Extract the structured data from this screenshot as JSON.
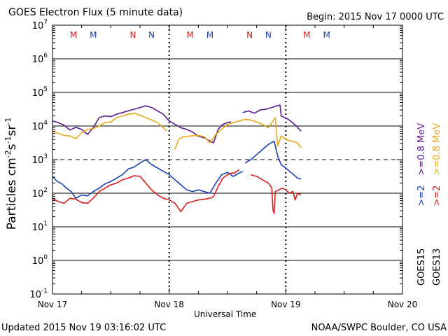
{
  "header": {
    "title": "GOES Electron Flux (5 minute data)",
    "begin": "Begin: 2015 Nov 17 0000 UTC"
  },
  "footer": {
    "updated": "Updated 2015 Nov 19 03:16:02 UTC",
    "credit": "NOAA/SWPC Boulder, CO USA"
  },
  "colors": {
    "goes15_low": "#1a3fb4",
    "goes13_low": "#d81c1c",
    "goes15_high": "#5a1a90",
    "goes13_high": "#e8a81a"
  },
  "chart_data": {
    "type": "line",
    "title": "GOES Electron Flux (5 minute data)",
    "xlabel": "Universal Time",
    "ylabel": "Particles cm-2s-1sr-1",
    "ylabel_parts": [
      "Particles cm",
      "-2",
      "s",
      "-1",
      "sr",
      "-1"
    ],
    "yscale": "log",
    "ylim_exponent": [
      -1,
      7
    ],
    "y_ticks": [
      {
        "exp": 7,
        "base": "10",
        "sup": "7"
      },
      {
        "exp": 6,
        "base": "10",
        "sup": "6"
      },
      {
        "exp": 5,
        "base": "10",
        "sup": "5"
      },
      {
        "exp": 4,
        "base": "10",
        "sup": "4"
      },
      {
        "exp": 3,
        "base": "10",
        "sup": "3"
      },
      {
        "exp": 2,
        "base": "10",
        "sup": "2"
      },
      {
        "exp": 1,
        "base": "10",
        "sup": "1"
      },
      {
        "exp": 0,
        "base": "10",
        "sup": "0"
      },
      {
        "exp": -1,
        "base": "10",
        "sup": "-1"
      }
    ],
    "xlim_days": [
      0,
      3
    ],
    "x_ticks": [
      {
        "day": 0,
        "label": "Nov 17"
      },
      {
        "day": 1,
        "label": "Nov 18"
      },
      {
        "day": 2,
        "label": "Nov 19"
      },
      {
        "day": 3,
        "label": "Nov 20"
      }
    ],
    "threshold_exp": 3,
    "midnight_markers_days": [
      1,
      2
    ],
    "local_time_markers": [
      {
        "day": 0.18,
        "label": "M",
        "sat": "goes13"
      },
      {
        "day": 0.35,
        "label": "M",
        "sat": "goes15"
      },
      {
        "day": 0.69,
        "label": "N",
        "sat": "goes13"
      },
      {
        "day": 0.85,
        "label": "N",
        "sat": "goes15"
      },
      {
        "day": 1.18,
        "label": "M",
        "sat": "goes13"
      },
      {
        "day": 1.35,
        "label": "M",
        "sat": "goes15"
      },
      {
        "day": 1.69,
        "label": "N",
        "sat": "goes13"
      },
      {
        "day": 1.85,
        "label": "N",
        "sat": "goes15"
      },
      {
        "day": 2.18,
        "label": "M",
        "sat": "goes13"
      },
      {
        "day": 2.35,
        "label": "M",
        "sat": "goes15"
      }
    ],
    "legend": {
      "position": "right",
      "columns": [
        {
          "sat": "GOES15",
          "channels": [
            {
              "label": ">=2",
              "color": "#1a3fb4"
            },
            {
              "label": ">=0.8 MeV",
              "color": "#5a1a90"
            }
          ]
        },
        {
          "sat": "GOES13",
          "channels": [
            {
              "label": ">=2",
              "color": "#d81c1c"
            },
            {
              "label": ">=0.8 MeV",
              "color": "#e8a81a"
            }
          ]
        }
      ]
    },
    "series": [
      {
        "name": "GOES15 >=0.8 MeV",
        "color": "#5a1a90",
        "segments": [
          [
            [
              0.0,
              4.15
            ],
            [
              0.05,
              4.1
            ],
            [
              0.1,
              4.02
            ],
            [
              0.15,
              3.88
            ],
            [
              0.2,
              3.96
            ],
            [
              0.25,
              3.9
            ],
            [
              0.3,
              3.75
            ],
            [
              0.35,
              3.95
            ],
            [
              0.4,
              4.25
            ],
            [
              0.45,
              4.3
            ],
            [
              0.5,
              4.28
            ],
            [
              0.55,
              4.35
            ],
            [
              0.6,
              4.4
            ],
            [
              0.65,
              4.45
            ],
            [
              0.7,
              4.5
            ],
            [
              0.75,
              4.55
            ],
            [
              0.8,
              4.6
            ],
            [
              0.85,
              4.55
            ],
            [
              0.9,
              4.45
            ],
            [
              0.95,
              4.35
            ],
            [
              1.0,
              4.15
            ],
            [
              1.05,
              4.05
            ],
            [
              1.1,
              3.95
            ],
            [
              1.15,
              3.9
            ],
            [
              1.2,
              3.82
            ],
            [
              1.25,
              3.7
            ],
            [
              1.3,
              3.65
            ],
            [
              1.35,
              3.55
            ],
            [
              1.38,
              3.5
            ],
            [
              1.42,
              3.9
            ],
            [
              1.46,
              4.05
            ],
            [
              1.5,
              4.1
            ],
            [
              1.53,
              4.12
            ]
          ],
          [
            [
              1.63,
              4.4
            ],
            [
              1.68,
              4.45
            ],
            [
              1.73,
              4.38
            ],
            [
              1.78,
              4.48
            ],
            [
              1.83,
              4.5
            ],
            [
              1.88,
              4.55
            ],
            [
              1.92,
              4.6
            ],
            [
              1.95,
              4.62
            ],
            [
              1.96,
              4.3
            ],
            [
              1.99,
              4.25
            ],
            [
              2.02,
              4.2
            ],
            [
              2.05,
              4.12
            ],
            [
              2.09,
              4.0
            ],
            [
              2.13,
              3.85
            ]
          ]
        ]
      },
      {
        "name": "GOES13 >=0.8 MeV",
        "color": "#e8a81a",
        "segments": [
          [
            [
              0.0,
              3.85
            ],
            [
              0.05,
              3.78
            ],
            [
              0.1,
              3.72
            ],
            [
              0.15,
              3.7
            ],
            [
              0.2,
              3.62
            ],
            [
              0.25,
              3.8
            ],
            [
              0.3,
              3.9
            ],
            [
              0.35,
              3.92
            ],
            [
              0.4,
              4.0
            ],
            [
              0.45,
              4.1
            ],
            [
              0.5,
              4.12
            ],
            [
              0.55,
              4.25
            ],
            [
              0.6,
              4.3
            ],
            [
              0.65,
              4.35
            ],
            [
              0.7,
              4.38
            ],
            [
              0.75,
              4.32
            ],
            [
              0.8,
              4.25
            ],
            [
              0.85,
              4.18
            ],
            [
              0.9,
              4.1
            ],
            [
              0.95,
              3.95
            ],
            [
              0.98,
              3.85
            ]
          ],
          [
            [
              1.05,
              3.3
            ],
            [
              1.08,
              3.6
            ],
            [
              1.12,
              3.68
            ],
            [
              1.18,
              3.7
            ],
            [
              1.25,
              3.72
            ],
            [
              1.3,
              3.68
            ],
            [
              1.35,
              3.5
            ],
            [
              1.4,
              3.75
            ],
            [
              1.45,
              3.9
            ],
            [
              1.5,
              4.05
            ],
            [
              1.55,
              4.1
            ],
            [
              1.6,
              4.15
            ],
            [
              1.65,
              4.2
            ],
            [
              1.7,
              4.18
            ],
            [
              1.75,
              4.12
            ],
            [
              1.8,
              4.05
            ],
            [
              1.85,
              3.95
            ],
            [
              1.88,
              4.1
            ],
            [
              1.91,
              4.25
            ],
            [
              1.93,
              3.4
            ],
            [
              1.96,
              3.7
            ],
            [
              2.0,
              3.6
            ],
            [
              2.05,
              3.55
            ],
            [
              2.1,
              3.5
            ],
            [
              2.13,
              3.35
            ]
          ]
        ]
      },
      {
        "name": "GOES15 >=2 MeV",
        "color": "#1a3fb4",
        "segments": [
          [
            [
              0.0,
              2.5
            ],
            [
              0.04,
              2.35
            ],
            [
              0.08,
              2.28
            ],
            [
              0.12,
              2.15
            ],
            [
              0.16,
              2.05
            ],
            [
              0.2,
              1.85
            ],
            [
              0.25,
              1.95
            ],
            [
              0.3,
              1.92
            ],
            [
              0.35,
              2.05
            ],
            [
              0.4,
              2.15
            ],
            [
              0.45,
              2.28
            ],
            [
              0.5,
              2.35
            ],
            [
              0.55,
              2.45
            ],
            [
              0.6,
              2.55
            ],
            [
              0.65,
              2.72
            ],
            [
              0.7,
              2.78
            ],
            [
              0.75,
              2.9
            ],
            [
              0.8,
              3.0
            ],
            [
              0.85,
              2.85
            ],
            [
              0.9,
              2.75
            ],
            [
              0.95,
              2.65
            ],
            [
              1.0,
              2.55
            ],
            [
              1.05,
              2.4
            ],
            [
              1.1,
              2.25
            ],
            [
              1.15,
              2.1
            ],
            [
              1.2,
              2.05
            ],
            [
              1.25,
              2.1
            ],
            [
              1.3,
              2.05
            ],
            [
              1.35,
              2.0
            ],
            [
              1.4,
              2.3
            ],
            [
              1.45,
              2.55
            ],
            [
              1.5,
              2.62
            ],
            [
              1.55,
              2.5
            ],
            [
              1.6,
              2.6
            ],
            [
              1.63,
              2.65
            ]
          ],
          [
            [
              1.65,
              2.9
            ],
            [
              1.7,
              3.0
            ],
            [
              1.75,
              3.15
            ],
            [
              1.8,
              3.3
            ],
            [
              1.85,
              3.45
            ],
            [
              1.9,
              3.55
            ],
            [
              1.93,
              3.1
            ],
            [
              1.96,
              2.85
            ],
            [
              2.0,
              2.75
            ],
            [
              2.05,
              2.6
            ],
            [
              2.1,
              2.45
            ],
            [
              2.13,
              2.42
            ]
          ]
        ]
      },
      {
        "name": "GOES13 >=2 MeV",
        "color": "#d81c1c",
        "segments": [
          [
            [
              0.0,
              1.85
            ],
            [
              0.05,
              1.75
            ],
            [
              0.1,
              1.7
            ],
            [
              0.15,
              1.85
            ],
            [
              0.2,
              1.82
            ],
            [
              0.25,
              1.72
            ],
            [
              0.3,
              1.7
            ],
            [
              0.35,
              1.85
            ],
            [
              0.4,
              2.05
            ],
            [
              0.45,
              2.15
            ],
            [
              0.5,
              2.25
            ],
            [
              0.55,
              2.3
            ],
            [
              0.6,
              2.4
            ],
            [
              0.65,
              2.45
            ],
            [
              0.7,
              2.52
            ],
            [
              0.75,
              2.5
            ],
            [
              0.8,
              2.3
            ],
            [
              0.85,
              2.1
            ],
            [
              0.9,
              1.95
            ],
            [
              0.95,
              1.85
            ],
            [
              1.0,
              1.8
            ],
            [
              1.05,
              1.7
            ],
            [
              1.1,
              1.45
            ],
            [
              1.12,
              1.55
            ],
            [
              1.15,
              1.7
            ],
            [
              1.2,
              1.75
            ],
            [
              1.25,
              1.8
            ],
            [
              1.3,
              1.82
            ],
            [
              1.35,
              1.85
            ],
            [
              1.38,
              1.9
            ],
            [
              1.42,
              2.2
            ],
            [
              1.46,
              2.45
            ],
            [
              1.5,
              2.55
            ],
            [
              1.53,
              2.6
            ],
            [
              1.56,
              2.6
            ],
            [
              1.6,
              2.7
            ]
          ],
          [
            [
              1.7,
              2.55
            ],
            [
              1.75,
              2.5
            ],
            [
              1.8,
              2.4
            ],
            [
              1.85,
              2.3
            ],
            [
              1.88,
              2.15
            ],
            [
              1.89,
              1.5
            ],
            [
              1.9,
              1.4
            ],
            [
              1.91,
              2.05
            ],
            [
              1.94,
              2.1
            ],
            [
              1.97,
              2.15
            ],
            [
              2.0,
              2.1
            ],
            [
              2.03,
              2.0
            ],
            [
              2.06,
              2.05
            ],
            [
              2.08,
              1.8
            ],
            [
              2.1,
              2.0
            ],
            [
              2.13,
              1.95
            ]
          ]
        ]
      }
    ]
  }
}
